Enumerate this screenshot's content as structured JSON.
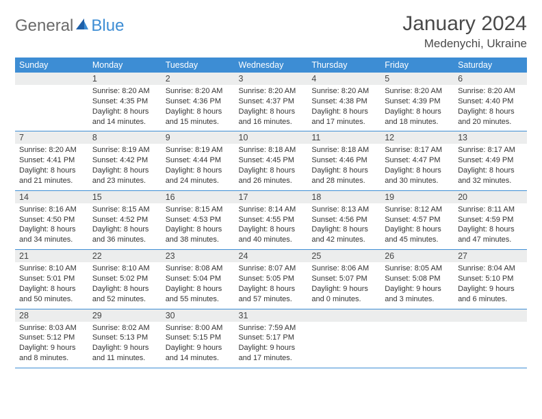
{
  "logo": {
    "general": "General",
    "blue": "Blue"
  },
  "title": "January 2024",
  "location": "Medenychi, Ukraine",
  "colors": {
    "header_bg": "#3d8dd4",
    "header_text": "#ffffff",
    "daynum_bg": "#eceded",
    "border": "#3d8dd4",
    "text": "#333333",
    "logo_gray": "#6a6a6a",
    "logo_blue": "#3d8dd4"
  },
  "dayNames": [
    "Sunday",
    "Monday",
    "Tuesday",
    "Wednesday",
    "Thursday",
    "Friday",
    "Saturday"
  ],
  "weeks": [
    [
      {
        "n": "",
        "lines": []
      },
      {
        "n": "1",
        "lines": [
          "Sunrise: 8:20 AM",
          "Sunset: 4:35 PM",
          "Daylight: 8 hours",
          "and 14 minutes."
        ]
      },
      {
        "n": "2",
        "lines": [
          "Sunrise: 8:20 AM",
          "Sunset: 4:36 PM",
          "Daylight: 8 hours",
          "and 15 minutes."
        ]
      },
      {
        "n": "3",
        "lines": [
          "Sunrise: 8:20 AM",
          "Sunset: 4:37 PM",
          "Daylight: 8 hours",
          "and 16 minutes."
        ]
      },
      {
        "n": "4",
        "lines": [
          "Sunrise: 8:20 AM",
          "Sunset: 4:38 PM",
          "Daylight: 8 hours",
          "and 17 minutes."
        ]
      },
      {
        "n": "5",
        "lines": [
          "Sunrise: 8:20 AM",
          "Sunset: 4:39 PM",
          "Daylight: 8 hours",
          "and 18 minutes."
        ]
      },
      {
        "n": "6",
        "lines": [
          "Sunrise: 8:20 AM",
          "Sunset: 4:40 PM",
          "Daylight: 8 hours",
          "and 20 minutes."
        ]
      }
    ],
    [
      {
        "n": "7",
        "lines": [
          "Sunrise: 8:20 AM",
          "Sunset: 4:41 PM",
          "Daylight: 8 hours",
          "and 21 minutes."
        ]
      },
      {
        "n": "8",
        "lines": [
          "Sunrise: 8:19 AM",
          "Sunset: 4:42 PM",
          "Daylight: 8 hours",
          "and 23 minutes."
        ]
      },
      {
        "n": "9",
        "lines": [
          "Sunrise: 8:19 AM",
          "Sunset: 4:44 PM",
          "Daylight: 8 hours",
          "and 24 minutes."
        ]
      },
      {
        "n": "10",
        "lines": [
          "Sunrise: 8:18 AM",
          "Sunset: 4:45 PM",
          "Daylight: 8 hours",
          "and 26 minutes."
        ]
      },
      {
        "n": "11",
        "lines": [
          "Sunrise: 8:18 AM",
          "Sunset: 4:46 PM",
          "Daylight: 8 hours",
          "and 28 minutes."
        ]
      },
      {
        "n": "12",
        "lines": [
          "Sunrise: 8:17 AM",
          "Sunset: 4:47 PM",
          "Daylight: 8 hours",
          "and 30 minutes."
        ]
      },
      {
        "n": "13",
        "lines": [
          "Sunrise: 8:17 AM",
          "Sunset: 4:49 PM",
          "Daylight: 8 hours",
          "and 32 minutes."
        ]
      }
    ],
    [
      {
        "n": "14",
        "lines": [
          "Sunrise: 8:16 AM",
          "Sunset: 4:50 PM",
          "Daylight: 8 hours",
          "and 34 minutes."
        ]
      },
      {
        "n": "15",
        "lines": [
          "Sunrise: 8:15 AM",
          "Sunset: 4:52 PM",
          "Daylight: 8 hours",
          "and 36 minutes."
        ]
      },
      {
        "n": "16",
        "lines": [
          "Sunrise: 8:15 AM",
          "Sunset: 4:53 PM",
          "Daylight: 8 hours",
          "and 38 minutes."
        ]
      },
      {
        "n": "17",
        "lines": [
          "Sunrise: 8:14 AM",
          "Sunset: 4:55 PM",
          "Daylight: 8 hours",
          "and 40 minutes."
        ]
      },
      {
        "n": "18",
        "lines": [
          "Sunrise: 8:13 AM",
          "Sunset: 4:56 PM",
          "Daylight: 8 hours",
          "and 42 minutes."
        ]
      },
      {
        "n": "19",
        "lines": [
          "Sunrise: 8:12 AM",
          "Sunset: 4:57 PM",
          "Daylight: 8 hours",
          "and 45 minutes."
        ]
      },
      {
        "n": "20",
        "lines": [
          "Sunrise: 8:11 AM",
          "Sunset: 4:59 PM",
          "Daylight: 8 hours",
          "and 47 minutes."
        ]
      }
    ],
    [
      {
        "n": "21",
        "lines": [
          "Sunrise: 8:10 AM",
          "Sunset: 5:01 PM",
          "Daylight: 8 hours",
          "and 50 minutes."
        ]
      },
      {
        "n": "22",
        "lines": [
          "Sunrise: 8:10 AM",
          "Sunset: 5:02 PM",
          "Daylight: 8 hours",
          "and 52 minutes."
        ]
      },
      {
        "n": "23",
        "lines": [
          "Sunrise: 8:08 AM",
          "Sunset: 5:04 PM",
          "Daylight: 8 hours",
          "and 55 minutes."
        ]
      },
      {
        "n": "24",
        "lines": [
          "Sunrise: 8:07 AM",
          "Sunset: 5:05 PM",
          "Daylight: 8 hours",
          "and 57 minutes."
        ]
      },
      {
        "n": "25",
        "lines": [
          "Sunrise: 8:06 AM",
          "Sunset: 5:07 PM",
          "Daylight: 9 hours",
          "and 0 minutes."
        ]
      },
      {
        "n": "26",
        "lines": [
          "Sunrise: 8:05 AM",
          "Sunset: 5:08 PM",
          "Daylight: 9 hours",
          "and 3 minutes."
        ]
      },
      {
        "n": "27",
        "lines": [
          "Sunrise: 8:04 AM",
          "Sunset: 5:10 PM",
          "Daylight: 9 hours",
          "and 6 minutes."
        ]
      }
    ],
    [
      {
        "n": "28",
        "lines": [
          "Sunrise: 8:03 AM",
          "Sunset: 5:12 PM",
          "Daylight: 9 hours",
          "and 8 minutes."
        ]
      },
      {
        "n": "29",
        "lines": [
          "Sunrise: 8:02 AM",
          "Sunset: 5:13 PM",
          "Daylight: 9 hours",
          "and 11 minutes."
        ]
      },
      {
        "n": "30",
        "lines": [
          "Sunrise: 8:00 AM",
          "Sunset: 5:15 PM",
          "Daylight: 9 hours",
          "and 14 minutes."
        ]
      },
      {
        "n": "31",
        "lines": [
          "Sunrise: 7:59 AM",
          "Sunset: 5:17 PM",
          "Daylight: 9 hours",
          "and 17 minutes."
        ]
      },
      {
        "n": "",
        "lines": []
      },
      {
        "n": "",
        "lines": []
      },
      {
        "n": "",
        "lines": []
      }
    ]
  ]
}
